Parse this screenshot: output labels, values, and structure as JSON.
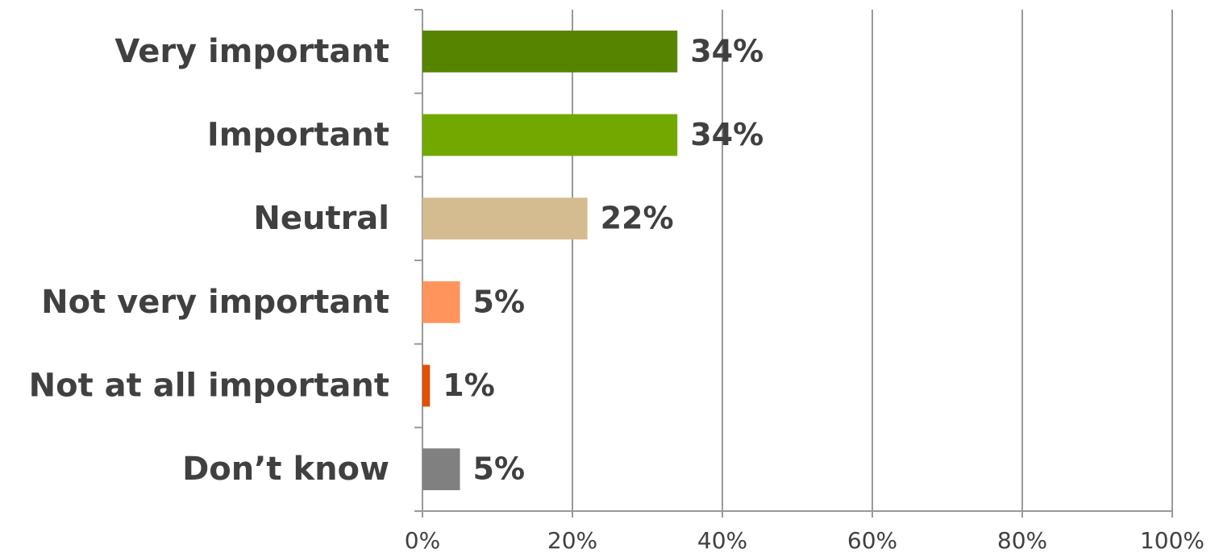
{
  "chart_data": {
    "type": "bar",
    "orientation": "horizontal",
    "categories": [
      "Very important",
      "Important",
      "Neutral",
      "Not very important",
      "Not at all important",
      "Don’t know"
    ],
    "values": [
      34,
      34,
      22,
      5,
      1,
      5
    ],
    "value_labels": [
      "34%",
      "34%",
      "22%",
      "5%",
      "1%",
      "5%"
    ],
    "colors": [
      "#568400",
      "#72a900",
      "#d4bc90",
      "#ff955c",
      "#e14f00",
      "#808080"
    ],
    "xlim": [
      0,
      100
    ],
    "xticks": [
      {
        "value": 0,
        "label": "0%"
      },
      {
        "value": 20,
        "label": "20%"
      },
      {
        "value": 40,
        "label": "40%"
      },
      {
        "value": 60,
        "label": "60%"
      },
      {
        "value": 80,
        "label": "80%"
      },
      {
        "value": 100,
        "label": "100%"
      }
    ],
    "grid": true
  }
}
